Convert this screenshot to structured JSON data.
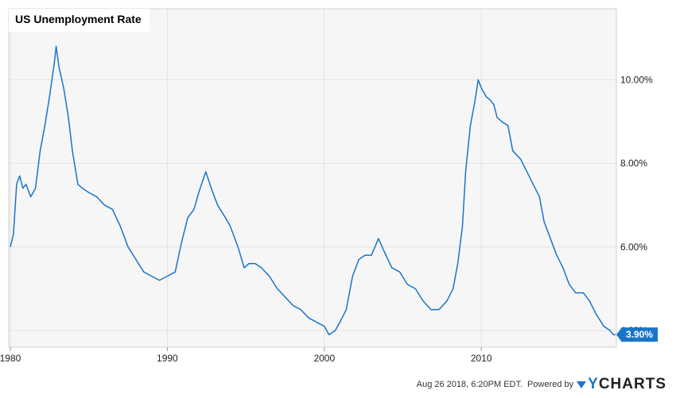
{
  "chart_data": {
    "type": "line",
    "title": "US Unemployment Rate",
    "xlabel": "",
    "ylabel": "",
    "x_ticks": [
      "1980",
      "1990",
      "2000",
      "2010"
    ],
    "y_ticks": [
      "4.00%",
      "6.00%",
      "8.00%",
      "10.00%"
    ],
    "xlim": [
      1979.9,
      2018.6
    ],
    "ylim": [
      3.6,
      11.7
    ],
    "grid": true,
    "last_value_label": "3.90%",
    "series": [
      {
        "color": "#1a74c9",
        "points": [
          [
            1980.0,
            6.0
          ],
          [
            1980.2,
            6.3
          ],
          [
            1980.4,
            7.5
          ],
          [
            1980.6,
            7.7
          ],
          [
            1980.8,
            7.4
          ],
          [
            1981.0,
            7.5
          ],
          [
            1981.3,
            7.2
          ],
          [
            1981.6,
            7.4
          ],
          [
            1981.9,
            8.3
          ],
          [
            1982.2,
            8.9
          ],
          [
            1982.5,
            9.6
          ],
          [
            1982.8,
            10.4
          ],
          [
            1982.92,
            10.8
          ],
          [
            1983.1,
            10.3
          ],
          [
            1983.4,
            9.8
          ],
          [
            1983.7,
            9.1
          ],
          [
            1983.95,
            8.3
          ],
          [
            1984.3,
            7.5
          ],
          [
            1984.6,
            7.4
          ],
          [
            1985.0,
            7.3
          ],
          [
            1985.5,
            7.2
          ],
          [
            1986.0,
            7.0
          ],
          [
            1986.5,
            6.9
          ],
          [
            1987.0,
            6.5
          ],
          [
            1987.5,
            6.0
          ],
          [
            1988.0,
            5.7
          ],
          [
            1988.5,
            5.4
          ],
          [
            1989.0,
            5.3
          ],
          [
            1989.5,
            5.2
          ],
          [
            1990.0,
            5.3
          ],
          [
            1990.5,
            5.4
          ],
          [
            1990.9,
            6.1
          ],
          [
            1991.3,
            6.7
          ],
          [
            1991.7,
            6.9
          ],
          [
            1992.0,
            7.3
          ],
          [
            1992.45,
            7.8
          ],
          [
            1992.8,
            7.4
          ],
          [
            1993.2,
            7.0
          ],
          [
            1993.7,
            6.7
          ],
          [
            1994.0,
            6.5
          ],
          [
            1994.5,
            6.0
          ],
          [
            1994.9,
            5.5
          ],
          [
            1995.2,
            5.6
          ],
          [
            1995.6,
            5.6
          ],
          [
            1996.0,
            5.5
          ],
          [
            1996.5,
            5.3
          ],
          [
            1997.0,
            5.0
          ],
          [
            1997.5,
            4.8
          ],
          [
            1998.0,
            4.6
          ],
          [
            1998.5,
            4.5
          ],
          [
            1999.0,
            4.3
          ],
          [
            1999.5,
            4.2
          ],
          [
            2000.0,
            4.1
          ],
          [
            2000.3,
            3.9
          ],
          [
            2000.7,
            4.0
          ],
          [
            2001.0,
            4.2
          ],
          [
            2001.4,
            4.5
          ],
          [
            2001.8,
            5.3
          ],
          [
            2002.2,
            5.7
          ],
          [
            2002.6,
            5.8
          ],
          [
            2003.0,
            5.8
          ],
          [
            2003.45,
            6.2
          ],
          [
            2003.8,
            5.9
          ],
          [
            2004.3,
            5.5
          ],
          [
            2004.8,
            5.4
          ],
          [
            2005.3,
            5.1
          ],
          [
            2005.8,
            5.0
          ],
          [
            2006.3,
            4.7
          ],
          [
            2006.8,
            4.5
          ],
          [
            2007.3,
            4.5
          ],
          [
            2007.8,
            4.7
          ],
          [
            2008.2,
            5.0
          ],
          [
            2008.5,
            5.6
          ],
          [
            2008.8,
            6.5
          ],
          [
            2009.0,
            7.8
          ],
          [
            2009.3,
            8.9
          ],
          [
            2009.6,
            9.5
          ],
          [
            2009.8,
            10.0
          ],
          [
            2010.0,
            9.8
          ],
          [
            2010.3,
            9.6
          ],
          [
            2010.6,
            9.5
          ],
          [
            2010.8,
            9.4
          ],
          [
            2011.0,
            9.1
          ],
          [
            2011.3,
            9.0
          ],
          [
            2011.7,
            8.9
          ],
          [
            2012.0,
            8.3
          ],
          [
            2012.5,
            8.1
          ],
          [
            2012.9,
            7.8
          ],
          [
            2013.3,
            7.5
          ],
          [
            2013.7,
            7.2
          ],
          [
            2014.0,
            6.6
          ],
          [
            2014.4,
            6.2
          ],
          [
            2014.8,
            5.8
          ],
          [
            2015.2,
            5.5
          ],
          [
            2015.6,
            5.1
          ],
          [
            2016.0,
            4.9
          ],
          [
            2016.5,
            4.9
          ],
          [
            2016.9,
            4.7
          ],
          [
            2017.3,
            4.4
          ],
          [
            2017.8,
            4.1
          ],
          [
            2018.2,
            4.0
          ],
          [
            2018.4,
            3.9
          ],
          [
            2018.55,
            3.9
          ]
        ]
      }
    ]
  },
  "footer": {
    "timestamp": "Aug 26 2018, 6:20PM EDT.",
    "powered_by": "Powered by",
    "brand_y": "Y",
    "brand_rest": "CHARTS"
  }
}
